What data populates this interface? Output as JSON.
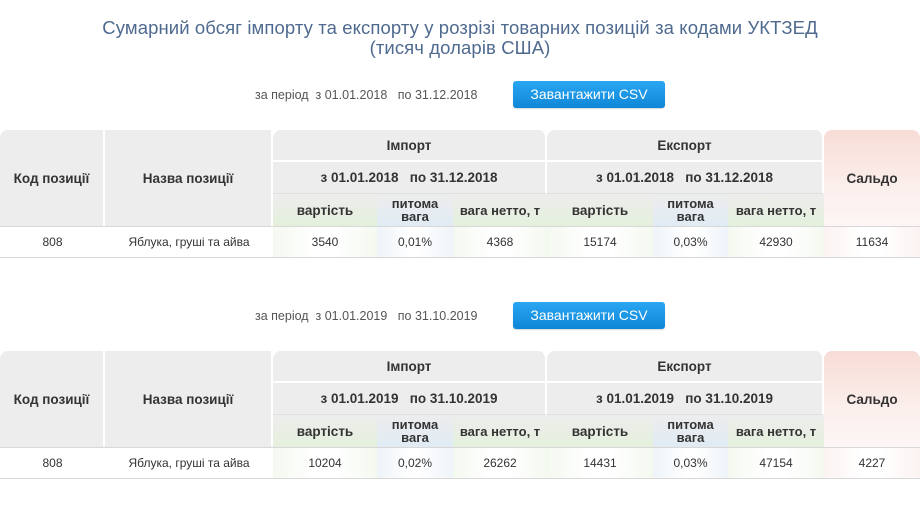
{
  "title": {
    "line1": "Сумарний обсяг імпорту та експорту у розрізі товарних позицій за кодами УКТЗЕД",
    "line2": "(тисяч доларів США)"
  },
  "sections": [
    {
      "period_label": "за період",
      "from": "з 01.01.2018",
      "to_label": "по",
      "to": "31.12.2018",
      "period_from_plain": "01.01.2018",
      "csv_button": "Завантажити CSV",
      "headers": {
        "code": "Код позиції",
        "name": "Назва позиції",
        "import": "Імпорт",
        "export": "Експорт",
        "saldo": "Сальдо",
        "import_period": "з 01.01.2018   по 31.12.2018",
        "export_period": "з 01.01.2018   по 31.12.2018",
        "value": "вартість",
        "specific_weight": "питома вага",
        "net_weight_imp": "вага нетто, т",
        "net_weight_exp": "вага нетто, т"
      },
      "row": {
        "code": "808",
        "name": "Яблука, груші та айва",
        "imp_value": "3540",
        "imp_share": "0,01%",
        "imp_net": "4368",
        "exp_value": "15174",
        "exp_share": "0,03%",
        "exp_net": "42930",
        "saldo": "11634"
      }
    },
    {
      "period_label": "за період",
      "from": "з 01.01.2019",
      "to_label": "по",
      "to": "31.10.2019",
      "period_from_plain": "01.01.2019",
      "csv_button": "Завантажити CSV",
      "headers": {
        "code": "Код позиції",
        "name": "Назва позиції",
        "import": "Імпорт",
        "export": "Експорт",
        "saldo": "Сальдо",
        "import_period": "з 01.01.2019   по 31.10.2019",
        "export_period": "з 01.01.2019   по 31.10.2019",
        "value": "вартість",
        "specific_weight": "питома вага",
        "net_weight_imp": "вага нетто, т",
        "net_weight_exp": "вага нетто, т"
      },
      "row": {
        "code": "808",
        "name": "Яблука, груші та айва",
        "imp_value": "10204",
        "imp_share": "0,02%",
        "imp_net": "26262",
        "exp_value": "14431",
        "exp_share": "0,03%",
        "exp_net": "47154",
        "saldo": "4227"
      }
    }
  ],
  "colors": {
    "title": "#4f6a8f",
    "button": "#1a96e6",
    "header_gray": "#ededed",
    "saldo_tint": "#f8dcd6"
  }
}
